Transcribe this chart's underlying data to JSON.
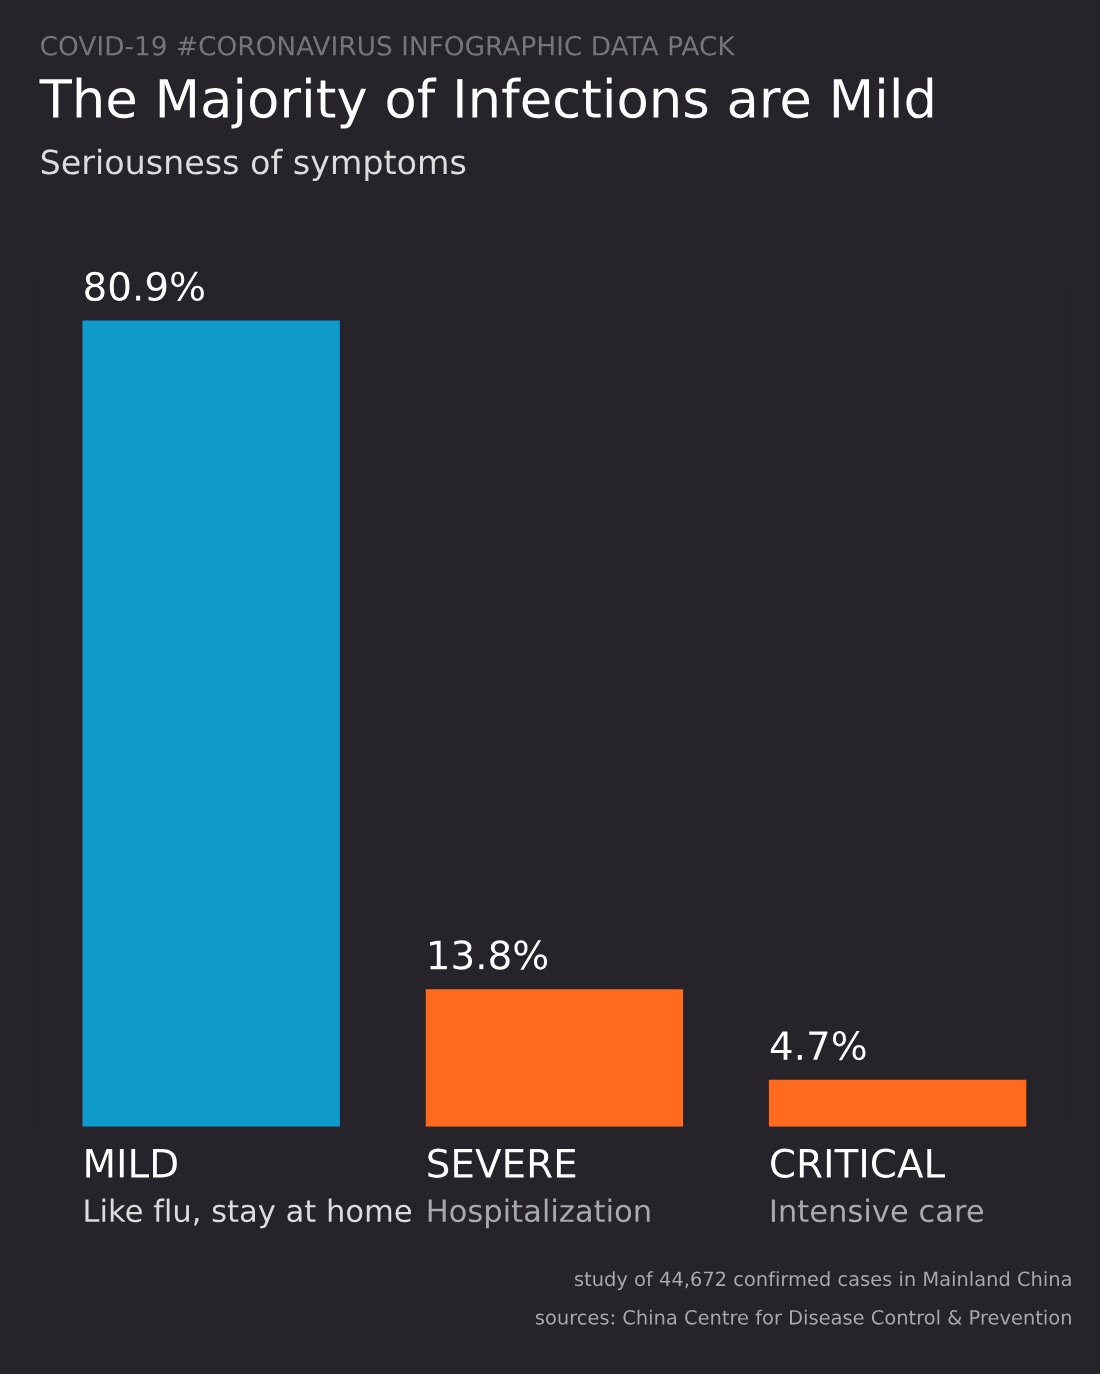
{
  "chart_data": {
    "type": "bar",
    "title": "The Majority of Infections are Mild",
    "subtitle": "Seriousness of symptoms",
    "categories": [
      "MILD\nLike flu, stay at home",
      "SEVERE\nHospitalization",
      "CRITICAL\nIntensive care"
    ],
    "values": [
      80.9,
      13.8,
      4.7
    ],
    "value_labels": [
      "80.9%",
      "13.8%",
      "4.7%"
    ],
    "colors": [
      "#0f9ccc",
      "#ff6a1e",
      "#ff6a1e"
    ],
    "annotations": [
      "COVID-19 #CORONAVIRUS INFOGRAPHIC DATA PACK",
      "study of 44,672 confirmed cases in Mainland China",
      "sources: China Centre for Disease Control & Prevention"
    ]
  }
}
